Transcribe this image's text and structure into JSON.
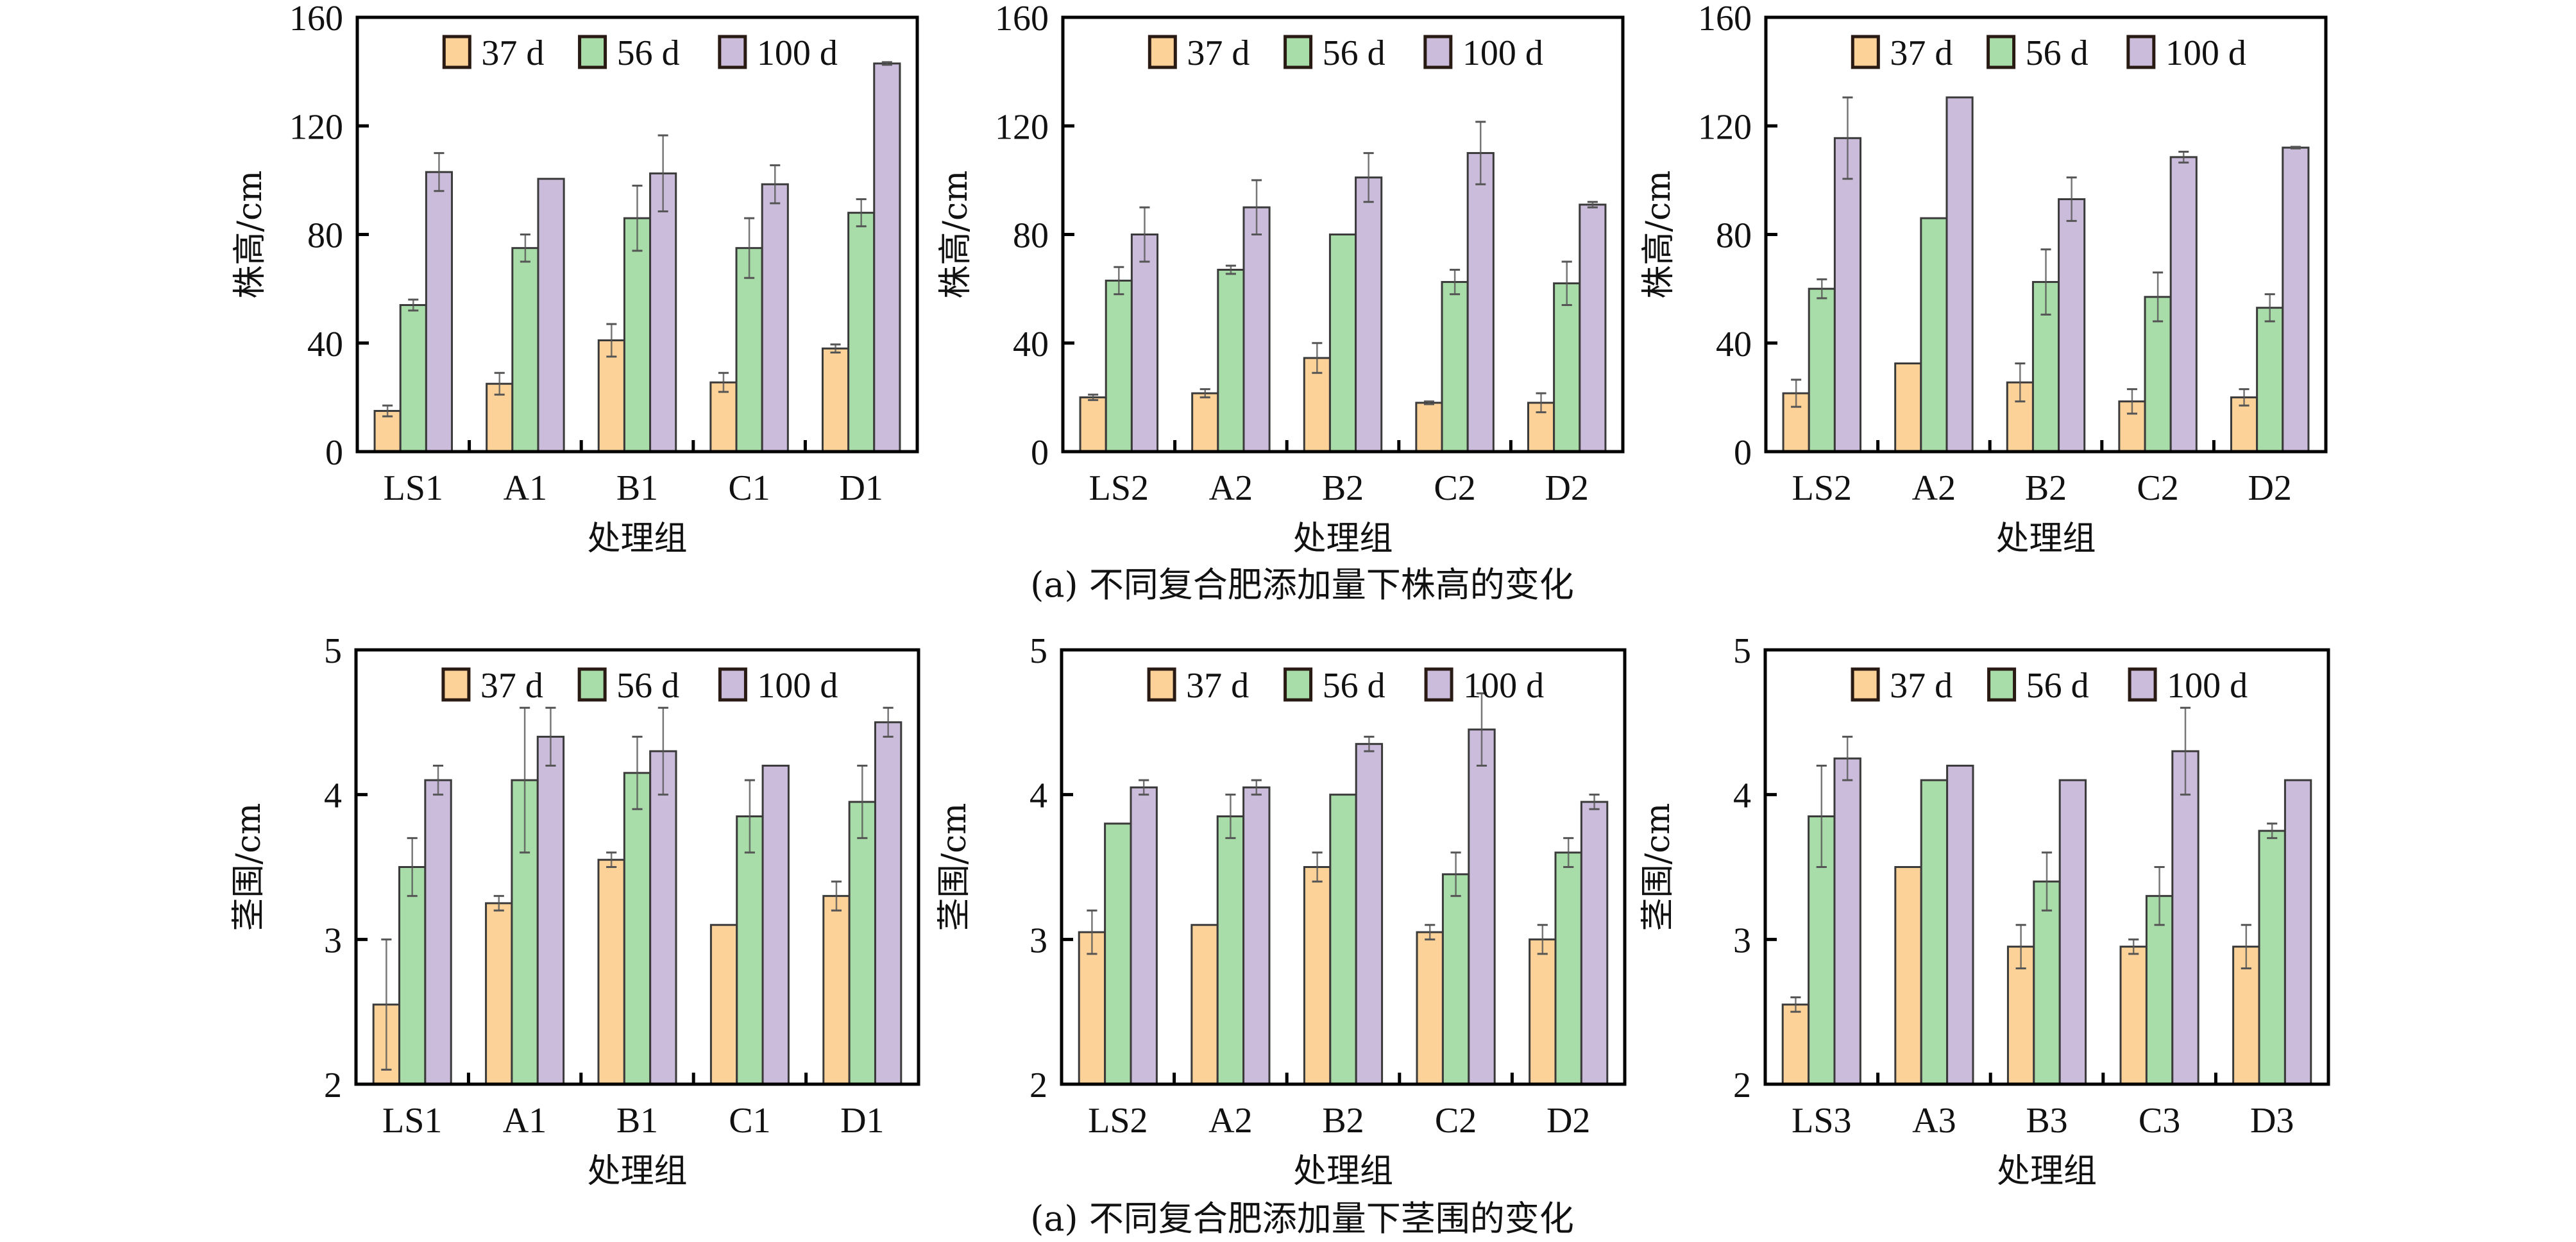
{
  "captions": {
    "top": "(a) 不同复合肥添加量下株高的变化",
    "bottom": "(a) 不同复合肥添加量下茎围的变化"
  },
  "legend": [
    "37 d",
    "56 d",
    "100 d"
  ],
  "colors": {
    "37 d": "#fdd299",
    "56 d": "#a8dca8",
    "100 d": "#cbbcdc",
    "bar_edge": "#3a3a3a",
    "error_bar": "#555555",
    "frame": "#000000"
  },
  "chart_data": [
    {
      "type": "bar",
      "panel": "top-left",
      "title": "",
      "xlabel": "处理组",
      "ylabel": "株高/cm",
      "ylim": [
        0,
        160
      ],
      "yticks": [
        0,
        40,
        80,
        120,
        160
      ],
      "legend_position": "top-center",
      "categories": [
        "LS1",
        "A1",
        "B1",
        "C1",
        "D1"
      ],
      "series": [
        {
          "name": "37 d",
          "values": [
            15,
            25,
            41,
            25.5,
            38
          ],
          "errors": [
            2,
            4,
            6,
            3.5,
            1.5
          ]
        },
        {
          "name": "56 d",
          "values": [
            54,
            75,
            86,
            75,
            88
          ],
          "errors": [
            2,
            5,
            12,
            11,
            5
          ]
        },
        {
          "name": "100 d",
          "values": [
            103,
            100.5,
            102.5,
            98.5,
            143
          ],
          "errors": [
            7,
            0,
            14,
            7,
            0.5
          ]
        }
      ]
    },
    {
      "type": "bar",
      "panel": "top-middle",
      "title": "",
      "xlabel": "处理组",
      "ylabel": "株高/cm",
      "ylim": [
        0,
        160
      ],
      "yticks": [
        0,
        40,
        80,
        120,
        160
      ],
      "legend_position": "top-center",
      "categories": [
        "LS2",
        "A2",
        "B2",
        "C2",
        "D2"
      ],
      "series": [
        {
          "name": "37 d",
          "values": [
            20,
            21.5,
            34.5,
            18,
            18
          ],
          "errors": [
            1,
            1.5,
            5.5,
            0.5,
            3.5
          ]
        },
        {
          "name": "56 d",
          "values": [
            63,
            67,
            80,
            62.5,
            62
          ],
          "errors": [
            5,
            1.5,
            0,
            4.5,
            8
          ]
        },
        {
          "name": "100 d",
          "values": [
            80,
            90,
            101,
            110,
            91
          ],
          "errors": [
            10,
            10,
            9,
            11.5,
            1
          ]
        }
      ]
    },
    {
      "type": "bar",
      "panel": "top-right",
      "title": "",
      "xlabel": "处理组",
      "ylabel": "株高/cm",
      "ylim": [
        0,
        160
      ],
      "yticks": [
        0,
        40,
        80,
        120,
        160
      ],
      "legend_position": "top-center",
      "categories": [
        "LS2",
        "A2",
        "B2",
        "C2",
        "D2"
      ],
      "series": [
        {
          "name": "37 d",
          "values": [
            21.5,
            32.5,
            25.5,
            18.5,
            20
          ],
          "errors": [
            5,
            0,
            7,
            4.5,
            3
          ]
        },
        {
          "name": "56 d",
          "values": [
            60,
            86,
            62.5,
            57,
            53
          ],
          "errors": [
            3.5,
            0,
            12,
            9,
            5
          ]
        },
        {
          "name": "100 d",
          "values": [
            115.5,
            130.5,
            93,
            108.5,
            112
          ],
          "errors": [
            15,
            0,
            8,
            2,
            0.3
          ]
        }
      ]
    },
    {
      "type": "bar",
      "panel": "bottom-left",
      "title": "",
      "xlabel": "处理组",
      "ylabel": "茎围/cm",
      "ylim": [
        2,
        5
      ],
      "yticks": [
        2,
        3,
        4,
        5
      ],
      "legend_position": "top-center",
      "categories": [
        "LS1",
        "A1",
        "B1",
        "C1",
        "D1"
      ],
      "series": [
        {
          "name": "37 d",
          "values": [
            2.55,
            3.25,
            3.55,
            3.1,
            3.3
          ],
          "errors": [
            0.45,
            0.05,
            0.05,
            0,
            0.1
          ]
        },
        {
          "name": "56 d",
          "values": [
            3.5,
            4.1,
            4.15,
            3.85,
            3.95
          ],
          "errors": [
            0.2,
            0.5,
            0.25,
            0.25,
            0.25
          ]
        },
        {
          "name": "100 d",
          "values": [
            4.1,
            4.4,
            4.3,
            4.2,
            4.5
          ],
          "errors": [
            0.1,
            0.2,
            0.3,
            0,
            0.1
          ]
        }
      ]
    },
    {
      "type": "bar",
      "panel": "bottom-middle",
      "title": "",
      "xlabel": "处理组",
      "ylabel": "茎围/cm",
      "ylim": [
        2,
        5
      ],
      "yticks": [
        2,
        3,
        4,
        5
      ],
      "legend_position": "top-center",
      "categories": [
        "LS2",
        "A2",
        "B2",
        "C2",
        "D2"
      ],
      "series": [
        {
          "name": "37 d",
          "values": [
            3.05,
            3.1,
            3.5,
            3.05,
            3.0
          ],
          "errors": [
            0.15,
            0,
            0.1,
            0.05,
            0.1
          ]
        },
        {
          "name": "56 d",
          "values": [
            3.8,
            3.85,
            4.0,
            3.45,
            3.6
          ],
          "errors": [
            0,
            0.15,
            0,
            0.15,
            0.1
          ]
        },
        {
          "name": "100 d",
          "values": [
            4.05,
            4.05,
            4.35,
            4.45,
            3.95
          ],
          "errors": [
            0.05,
            0.05,
            0.05,
            0.25,
            0.05
          ]
        }
      ]
    },
    {
      "type": "bar",
      "panel": "bottom-right",
      "title": "",
      "xlabel": "处理组",
      "ylabel": "茎围/cm",
      "ylim": [
        2,
        5
      ],
      "yticks": [
        2,
        3,
        4,
        5
      ],
      "legend_position": "top-center",
      "categories": [
        "LS3",
        "A3",
        "B3",
        "C3",
        "D3"
      ],
      "series": [
        {
          "name": "37 d",
          "values": [
            2.55,
            3.5,
            2.95,
            2.95,
            2.95
          ],
          "errors": [
            0.05,
            0,
            0.15,
            0.05,
            0.15
          ]
        },
        {
          "name": "56 d",
          "values": [
            3.85,
            4.1,
            3.4,
            3.3,
            3.75
          ],
          "errors": [
            0.35,
            0,
            0.2,
            0.2,
            0.05
          ]
        },
        {
          "name": "100 d",
          "values": [
            4.25,
            4.2,
            4.1,
            4.3,
            4.1
          ],
          "errors": [
            0.15,
            0,
            0,
            0.3,
            0
          ]
        }
      ]
    }
  ]
}
